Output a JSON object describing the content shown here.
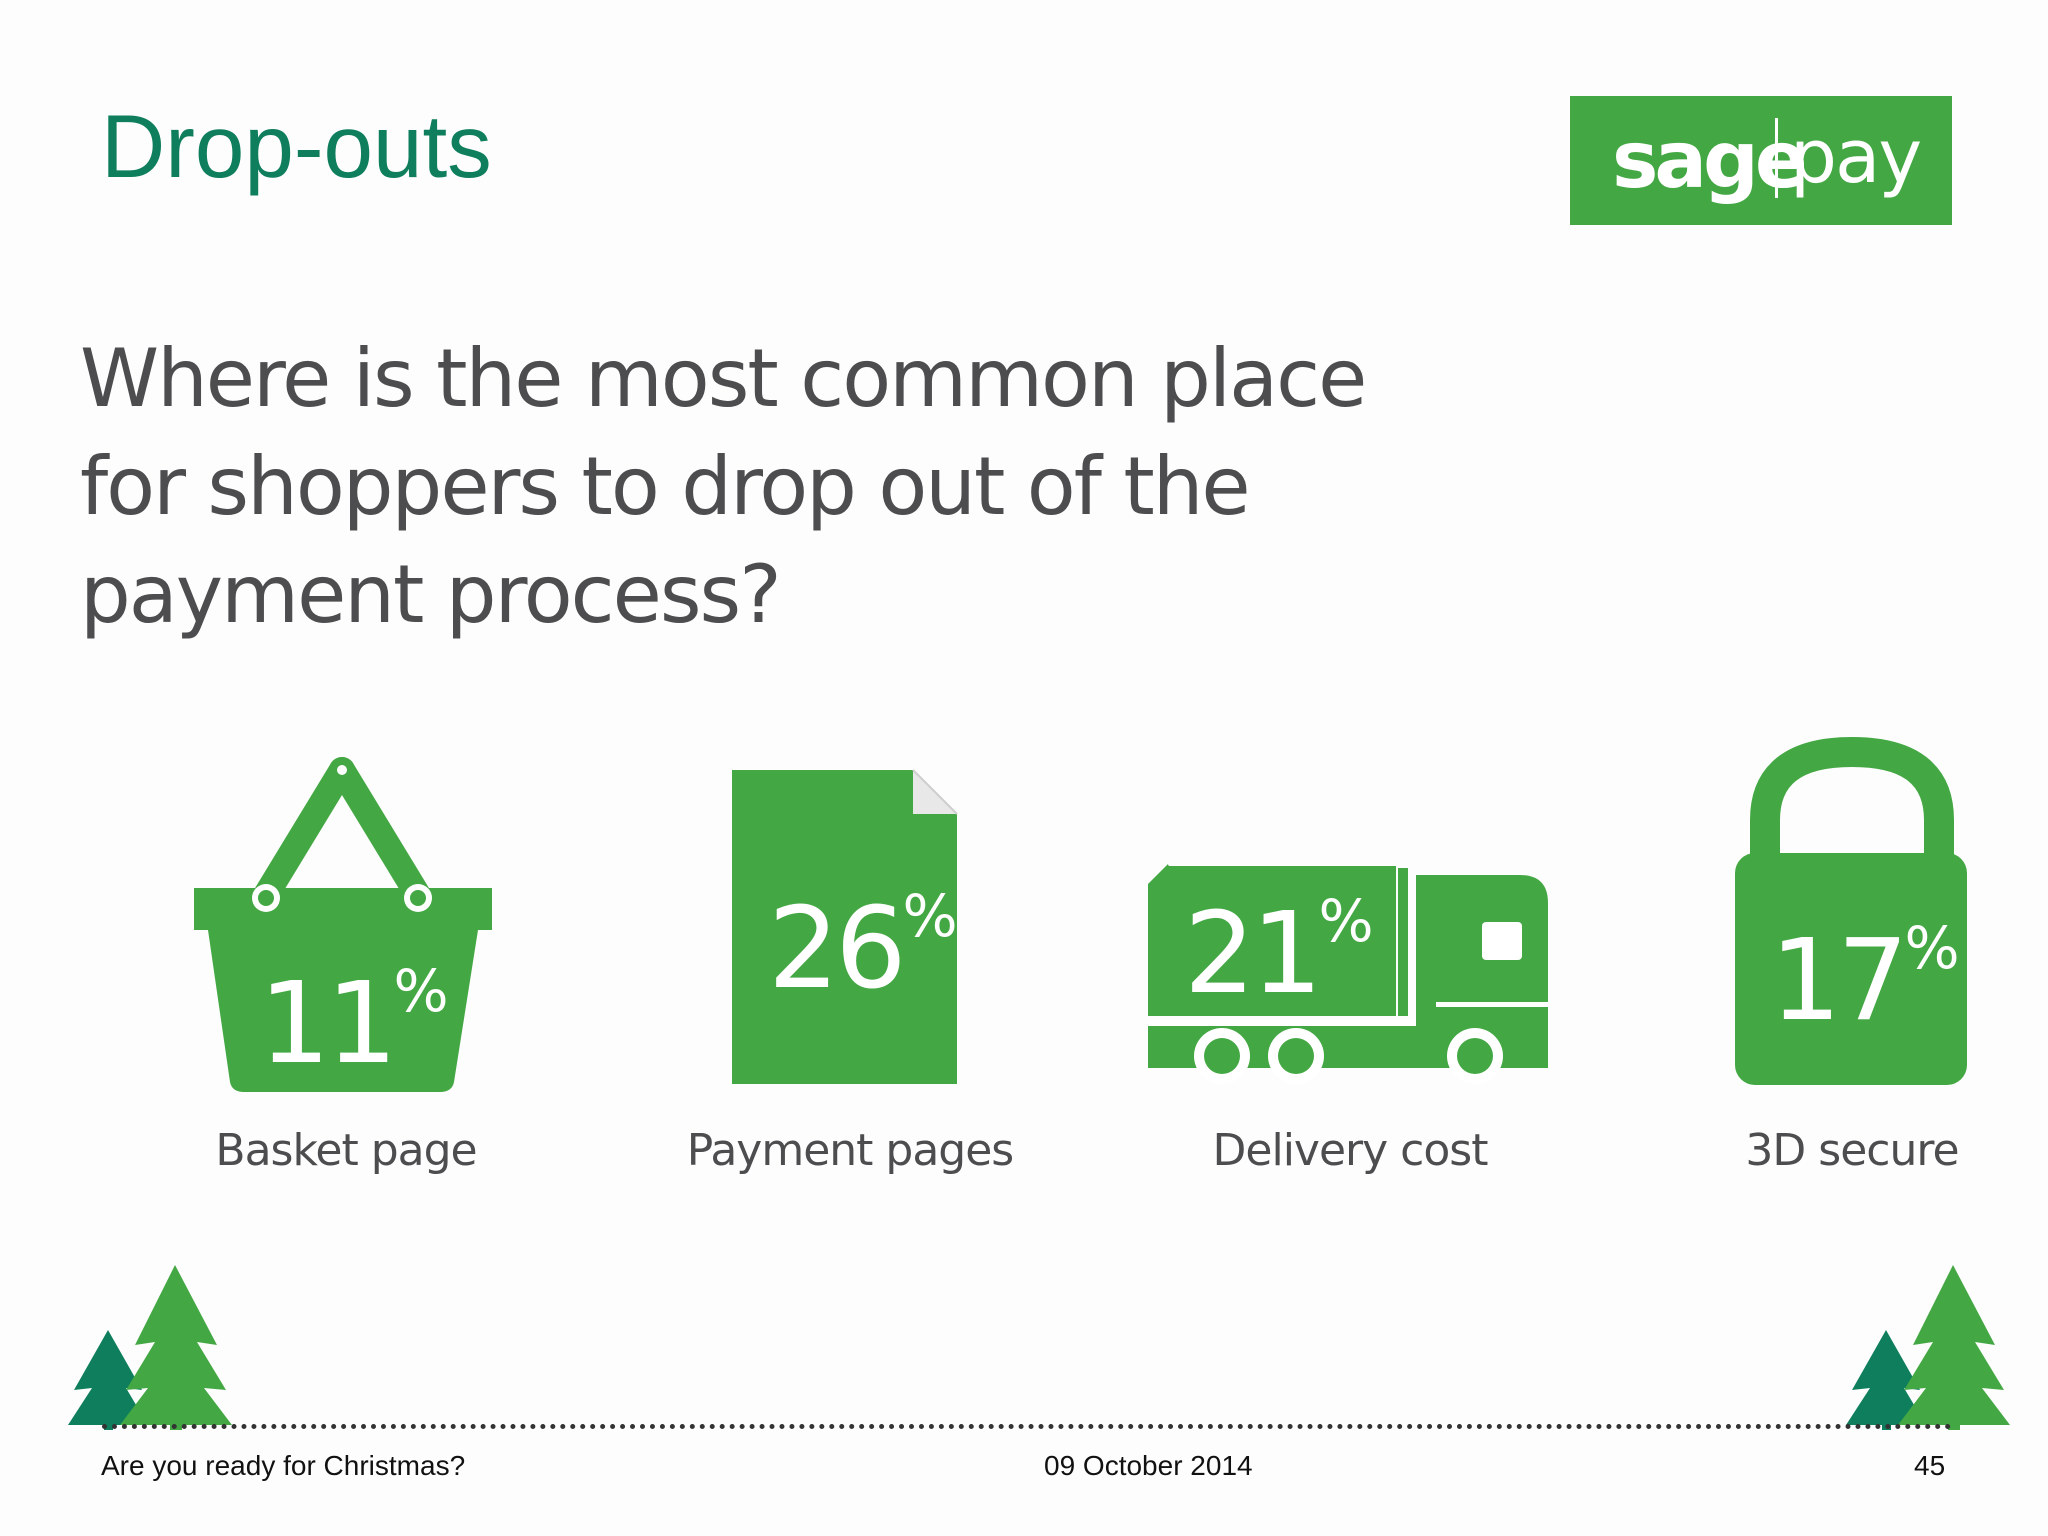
{
  "slide": {
    "title": "Drop-outs",
    "question_lines": [
      "Where is the most common place",
      "for shoppers to drop out of the",
      "payment process?"
    ]
  },
  "logo": {
    "brand": "sage",
    "product": "pay",
    "color": "#43a843"
  },
  "items": [
    {
      "icon": "shopping-basket-icon",
      "value": "11",
      "unit": "%",
      "label": "Basket page",
      "fraction": 0.11
    },
    {
      "icon": "document-icon",
      "value": "26",
      "unit": "%",
      "label": "Payment pages",
      "fraction": 0.26
    },
    {
      "icon": "delivery-truck-icon",
      "value": "21",
      "unit": "%",
      "label": "Delivery cost",
      "fraction": 0.21
    },
    {
      "icon": "padlock-icon",
      "value": "17",
      "unit": "%",
      "label": "3D secure",
      "fraction": 0.17
    }
  ],
  "footer": {
    "left": "Are you ready for Christmas?",
    "center": "09 October 2014",
    "page_number": "45"
  },
  "colors": {
    "accent": "#43a843",
    "title": "#0e7e5c",
    "dark_tree": "#0e7e5c",
    "text": "#4d4d4f"
  }
}
